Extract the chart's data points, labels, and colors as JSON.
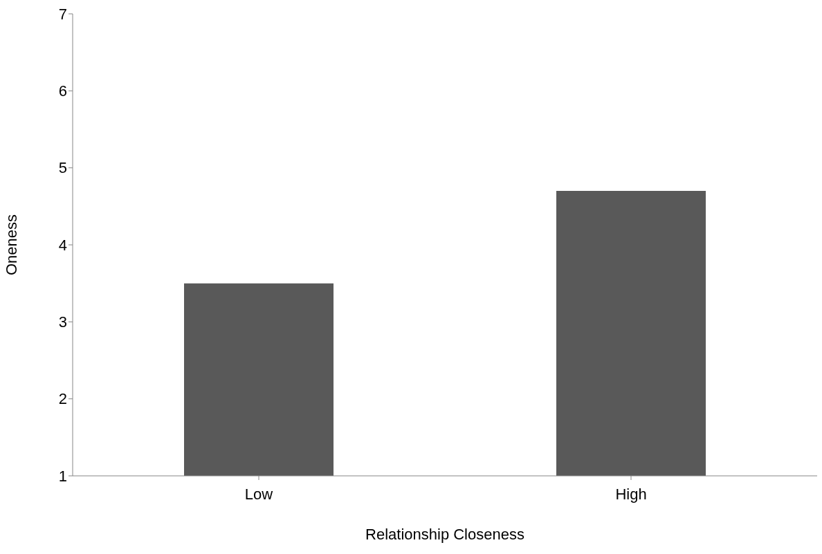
{
  "chart_data": {
    "type": "bar",
    "categories": [
      "Low",
      "High"
    ],
    "values": [
      3.5,
      4.7
    ],
    "color": "#595959",
    "xlabel": "Relationship Closeness",
    "ylabel": "Oneness",
    "ylim": [
      1,
      7
    ],
    "yticks": [
      1,
      2,
      3,
      4,
      5,
      6,
      7
    ],
    "grid": false
  }
}
